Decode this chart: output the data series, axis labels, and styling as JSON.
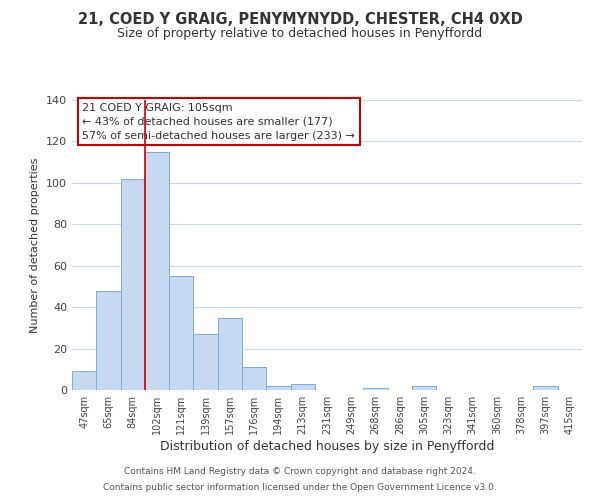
{
  "title": "21, COED Y GRAIG, PENYMYNYDD, CHESTER, CH4 0XD",
  "subtitle": "Size of property relative to detached houses in Penyffordd",
  "xlabel": "Distribution of detached houses by size in Penyffordd",
  "ylabel": "Number of detached properties",
  "bar_labels": [
    "47sqm",
    "65sqm",
    "84sqm",
    "102sqm",
    "121sqm",
    "139sqm",
    "157sqm",
    "176sqm",
    "194sqm",
    "213sqm",
    "231sqm",
    "249sqm",
    "268sqm",
    "286sqm",
    "305sqm",
    "323sqm",
    "341sqm",
    "360sqm",
    "378sqm",
    "397sqm",
    "415sqm"
  ],
  "bar_values": [
    9,
    48,
    102,
    115,
    55,
    27,
    35,
    11,
    2,
    3,
    0,
    0,
    1,
    0,
    2,
    0,
    0,
    0,
    0,
    2,
    0
  ],
  "bar_color": "#c6d9f1",
  "bar_edge_color": "#7aadde",
  "vline_x_index": 3,
  "vline_color": "#cc0000",
  "ylim": [
    0,
    140
  ],
  "yticks": [
    0,
    20,
    40,
    60,
    80,
    100,
    120,
    140
  ],
  "annotation_text_line1": "21 COED Y GRAIG: 105sqm",
  "annotation_text_line2": "← 43% of detached houses are smaller (177)",
  "annotation_text_line3": "57% of semi-detached houses are larger (233) →",
  "annotation_box_color": "#ffffff",
  "annotation_box_edge": "#cc0000",
  "footer_line1": "Contains HM Land Registry data © Crown copyright and database right 2024.",
  "footer_line2": "Contains public sector information licensed under the Open Government Licence v3.0.",
  "background_color": "#ffffff",
  "grid_color": "#c8d8ed"
}
